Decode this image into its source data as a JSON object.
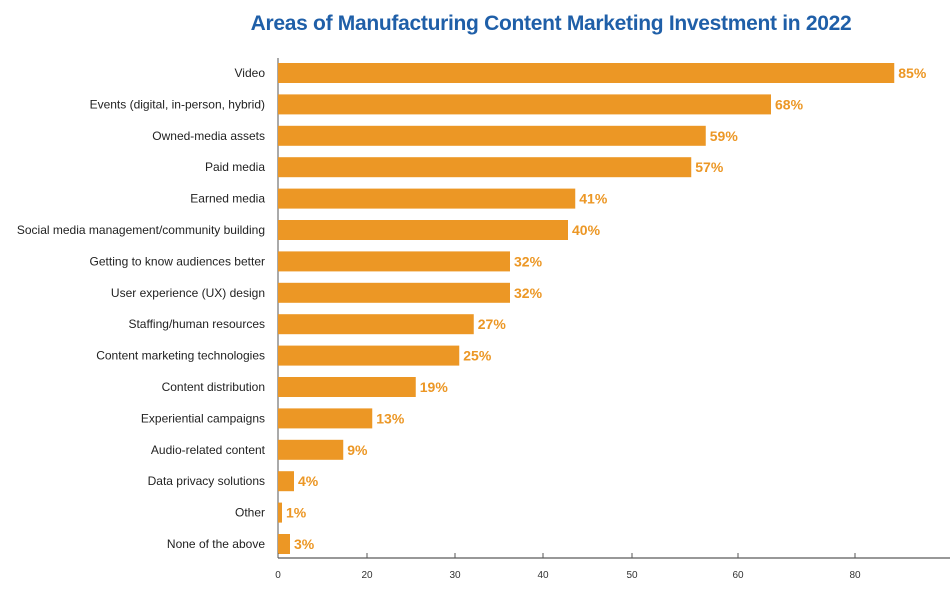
{
  "chart_data": {
    "type": "bar",
    "orientation": "horizontal",
    "title": "Areas of Manufacturing Content Marketing Investment in 2022",
    "categories": [
      "Video",
      "Events (digital, in-person, hybrid)",
      "Owned-media assets",
      "Paid media",
      "Earned media",
      "Social media management/community building",
      "Getting to know audiences better",
      "User experience (UX) design",
      "Staffing/human resources",
      "Content marketing technologies",
      "Content distribution",
      "Experiential campaigns",
      "Audio-related content",
      "Data privacy solutions",
      "Other",
      "None of the above"
    ],
    "values": [
      85,
      68,
      59,
      57,
      41,
      40,
      32,
      32,
      27,
      25,
      19,
      13,
      9,
      4,
      1,
      3
    ],
    "data_labels": [
      "85%",
      "68%",
      "59%",
      "57%",
      "41%",
      "40%",
      "32%",
      "32%",
      "27%",
      "25%",
      "19%",
      "13%",
      "9%",
      "4%",
      "1%",
      "3%"
    ],
    "x_ticks": [
      "0",
      "20",
      "30",
      "40",
      "50",
      "60",
      "80"
    ],
    "xlabel": "",
    "ylabel": "",
    "bar_color": "#ec9725",
    "label_color": "#ec9725",
    "grid": false
  }
}
